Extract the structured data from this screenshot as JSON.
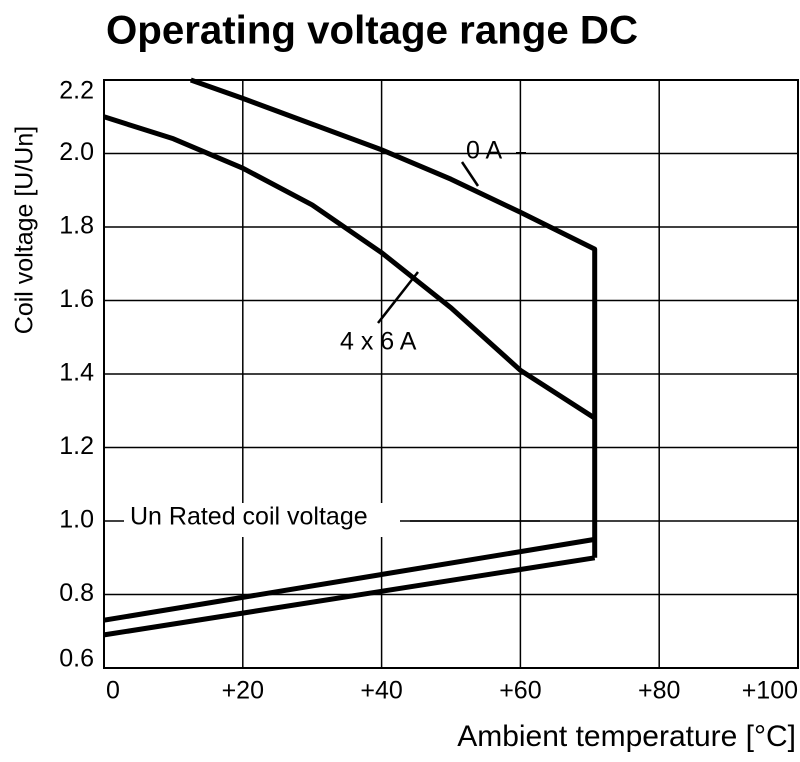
{
  "chart_data": {
    "type": "line",
    "title": "Operating voltage range DC",
    "x_label": "Ambient temperature [°C]",
    "y_label": "Coil voltage [U/Un]",
    "xlim": [
      0,
      100
    ],
    "ylim": [
      0.6,
      2.2
    ],
    "xticks": [
      0,
      {
        "value": 20,
        "label": "+20"
      },
      {
        "value": 40,
        "label": "+40"
      },
      {
        "value": 60,
        "label": "+60"
      },
      {
        "value": 80,
        "label": "+80"
      },
      {
        "value": 100,
        "label": "+100"
      }
    ],
    "yticks": [
      0.6,
      0.8,
      {
        "value": 1,
        "label": "1.0"
      },
      1.2,
      1.4,
      1.6,
      1.8,
      {
        "value": 2,
        "label": "2.0"
      },
      2.2
    ],
    "grid": true,
    "color": "#000000",
    "series": [
      {
        "name": "0 A",
        "x": [
          12.5,
          20,
          30,
          40,
          50,
          60,
          70.7,
          70.7
        ],
        "values": [
          2.2,
          2.15,
          2.08,
          2.01,
          1.93,
          1.84,
          1.74,
          0.9
        ]
      },
      {
        "name": "4 x 6 A",
        "x": [
          0,
          10,
          20,
          30,
          40,
          50,
          60,
          70.7
        ],
        "values": [
          2.1,
          2.04,
          1.96,
          1.86,
          1.73,
          1.58,
          1.41,
          1.28
        ]
      },
      {
        "x": [
          0,
          70.7
        ],
        "values": [
          0.73,
          0.95
        ]
      },
      {
        "x": [
          0,
          70.7
        ],
        "values": [
          0.69,
          0.9
        ]
      }
    ],
    "annotation": "Un Rated coil voltage"
  }
}
